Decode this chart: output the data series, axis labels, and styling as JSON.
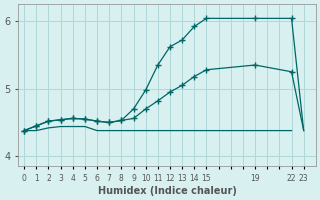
{
  "title": "",
  "xlabel": "Humidex (Indice chaleur)",
  "ylabel": "",
  "bg_color": "#d8f0f0",
  "line_color": "#006666",
  "grid_color": "#b0d8d8",
  "tick_color": "#555555",
  "xlim": [
    -0.5,
    24
  ],
  "ylim": [
    3.85,
    6.25
  ],
  "yticks": [
    4,
    5,
    6
  ],
  "xtick_labels": [
    "0",
    "1",
    "2",
    "3",
    "4",
    "5",
    "6",
    "7",
    "8",
    "9",
    "10",
    "11",
    "12",
    "13",
    "14",
    "15",
    "",
    "",
    "",
    "19",
    "",
    "",
    "22",
    "23"
  ],
  "xtick_positions": [
    0,
    1,
    2,
    3,
    4,
    5,
    6,
    7,
    8,
    9,
    10,
    11,
    12,
    13,
    14,
    15,
    16,
    17,
    18,
    19,
    20,
    21,
    22,
    23
  ],
  "line1_x": [
    0,
    1,
    2,
    3,
    4,
    5,
    6,
    7,
    8,
    9,
    10,
    11,
    12,
    13,
    14,
    15,
    19,
    22
  ],
  "line1_y": [
    4.38,
    4.38,
    4.42,
    4.44,
    4.44,
    4.44,
    4.38,
    4.38,
    4.38,
    4.38,
    4.38,
    4.38,
    4.38,
    4.38,
    4.38,
    4.38,
    4.38,
    4.38
  ],
  "line2_x": [
    0,
    1,
    2,
    3,
    4,
    5,
    6,
    7,
    8,
    9,
    10,
    11,
    12,
    13,
    14,
    15,
    19,
    22,
    23
  ],
  "line2_y": [
    4.38,
    4.45,
    4.52,
    4.54,
    4.56,
    4.55,
    4.52,
    4.5,
    4.53,
    4.56,
    4.7,
    4.82,
    4.95,
    5.05,
    5.18,
    5.28,
    5.35,
    5.25,
    4.38
  ],
  "line3_x": [
    0,
    1,
    2,
    3,
    4,
    5,
    6,
    7,
    8,
    9,
    10,
    11,
    12,
    13,
    14,
    15,
    19,
    22,
    23
  ],
  "line3_y": [
    4.38,
    4.45,
    4.52,
    4.54,
    4.56,
    4.55,
    4.52,
    4.5,
    4.53,
    4.7,
    4.98,
    5.35,
    5.62,
    5.72,
    5.92,
    6.04,
    6.04,
    6.04,
    4.38
  ],
  "marker_x": [
    0,
    1,
    2,
    3,
    4,
    5,
    6,
    7,
    8,
    9,
    10,
    11,
    12,
    13,
    14,
    15,
    19,
    22
  ],
  "marker_y2": [
    4.38,
    4.45,
    4.52,
    4.54,
    4.56,
    4.55,
    4.52,
    4.5,
    4.53,
    4.56,
    4.7,
    4.82,
    4.95,
    5.05,
    5.18,
    5.28,
    5.35,
    5.25
  ],
  "marker_y3": [
    4.38,
    4.45,
    4.52,
    4.54,
    4.56,
    4.55,
    4.52,
    4.5,
    4.53,
    4.7,
    4.98,
    5.35,
    5.62,
    5.72,
    5.92,
    6.04,
    6.04,
    6.04
  ]
}
